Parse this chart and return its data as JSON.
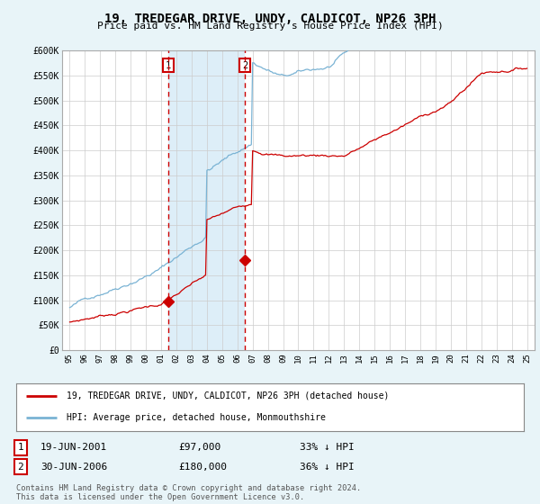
{
  "title": "19, TREDEGAR DRIVE, UNDY, CALDICOT, NP26 3PH",
  "subtitle": "Price paid vs. HM Land Registry's House Price Index (HPI)",
  "legend_line1": "19, TREDEGAR DRIVE, UNDY, CALDICOT, NP26 3PH (detached house)",
  "legend_line2": "HPI: Average price, detached house, Monmouthshire",
  "table_row1": [
    "1",
    "19-JUN-2001",
    "£97,000",
    "33% ↓ HPI"
  ],
  "table_row2": [
    "2",
    "30-JUN-2006",
    "£180,000",
    "36% ↓ HPI"
  ],
  "footnote": "Contains HM Land Registry data © Crown copyright and database right 2024.\nThis data is licensed under the Open Government Licence v3.0.",
  "purchase1_year": 2001.47,
  "purchase1_price": 97000,
  "purchase2_year": 2006.49,
  "purchase2_price": 180000,
  "vline1_year": 2001.47,
  "vline2_year": 2006.49,
  "hpi_color": "#7ab3d4",
  "price_color": "#cc0000",
  "vline_color": "#cc0000",
  "shade_color": "#ddeef8",
  "background_color": "#e8f4f8",
  "plot_bg_color": "#ffffff",
  "ylim": [
    0,
    600000
  ],
  "yticks": [
    0,
    50000,
    100000,
    150000,
    200000,
    250000,
    300000,
    350000,
    400000,
    450000,
    500000,
    550000,
    600000
  ],
  "ytick_labels": [
    "£0",
    "£50K",
    "£100K",
    "£150K",
    "£200K",
    "£250K",
    "£300K",
    "£350K",
    "£400K",
    "£450K",
    "£500K",
    "£550K",
    "£600K"
  ],
  "xlim_min": 1994.5,
  "xlim_max": 2025.5
}
